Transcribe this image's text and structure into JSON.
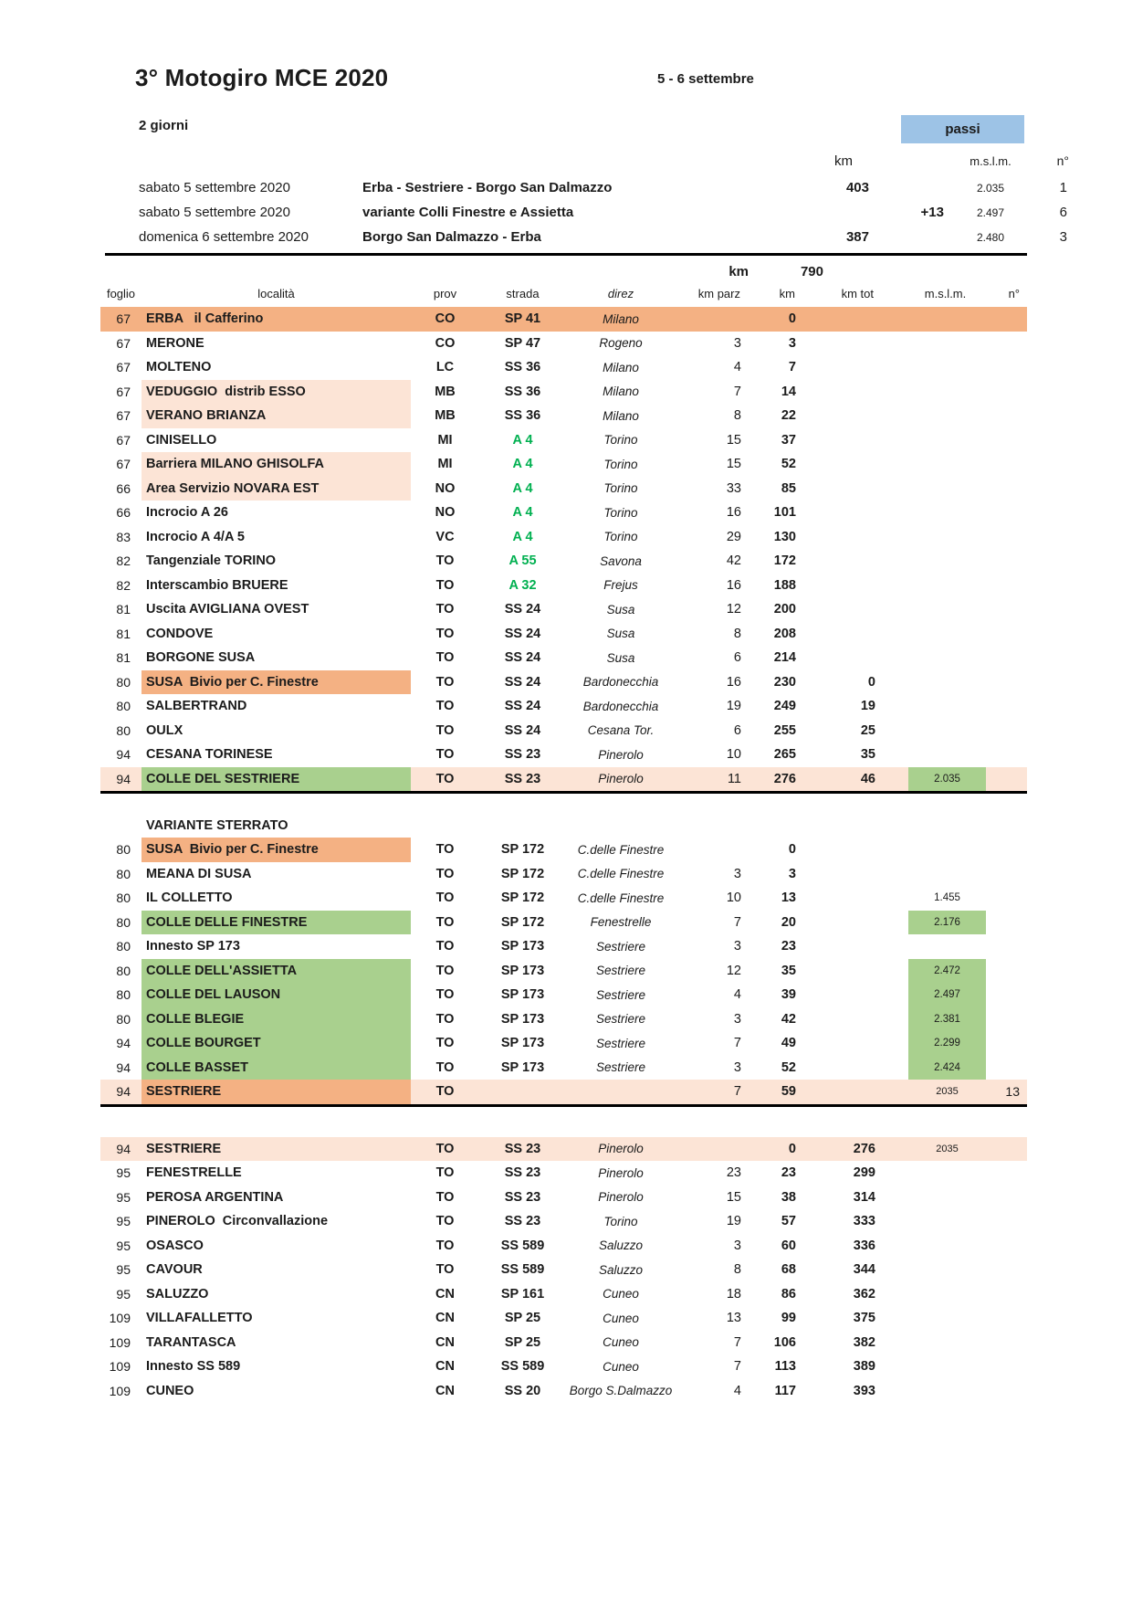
{
  "colors": {
    "orange": "#F4B183",
    "peach": "#FCE4D6",
    "green": "#A9D08E",
    "blue": "#9DC3E6",
    "road_green": "#00B050"
  },
  "header": {
    "title": "3° Motogiro MCE 2020",
    "dates": "5 - 6 settembre",
    "duration": "2 giorni",
    "passi_label": "passi"
  },
  "summary": {
    "columns": {
      "km": "km",
      "mslm": "m.s.l.m.",
      "n": "n°"
    },
    "rows": [
      {
        "date": "sabato 5 settembre 2020",
        "route": "Erba - Sestriere - Borgo San Dalmazzo",
        "km": "403",
        "extra": "",
        "mslm": "2.035",
        "n": "1"
      },
      {
        "date": "sabato 5 settembre 2020",
        "route": "variante Colli Finestre e Assietta",
        "km": "",
        "extra": "+13",
        "mslm": "2.497",
        "n": "6"
      },
      {
        "date": "domenica 6 settembre 2020",
        "route": "Borgo San Dalmazzo - Erba",
        "km": "387",
        "extra": "",
        "mslm": "2.480",
        "n": "3"
      }
    ],
    "total": {
      "label": "km",
      "value": "790"
    }
  },
  "table": {
    "columns": [
      "foglio",
      "località",
      "prov",
      "strada",
      "direz",
      "km parz",
      "km",
      "km tot",
      "m.s.l.m.",
      "n°"
    ],
    "sections": [
      {
        "rows": [
          {
            "f": "67",
            "loc": "ERBA   il Cafferino",
            "pr": "CO",
            "st": "SP 41",
            "dz": "Milano",
            "kp": "",
            "km": "0",
            "kt": "",
            "ms": "",
            "n": "",
            "bg": "orange"
          },
          {
            "f": "67",
            "loc": "MERONE",
            "pr": "CO",
            "st": "SP 47",
            "dz": "Rogeno",
            "kp": "3",
            "km": "3",
            "kt": "",
            "ms": "",
            "n": ""
          },
          {
            "f": "67",
            "loc": "MOLTENO",
            "pr": "LC",
            "st": "SS 36",
            "dz": "Milano",
            "kp": "4",
            "km": "7",
            "kt": "",
            "ms": "",
            "n": ""
          },
          {
            "f": "67",
            "loc": "VEDUGGIO  distrib ESSO",
            "pr": "MB",
            "st": "SS 36",
            "dz": "Milano",
            "kp": "7",
            "km": "14",
            "kt": "",
            "ms": "",
            "n": "",
            "lbg": "peach"
          },
          {
            "f": "67",
            "loc": "VERANO BRIANZA",
            "pr": "MB",
            "st": "SS 36",
            "dz": "Milano",
            "kp": "8",
            "km": "22",
            "kt": "",
            "ms": "",
            "n": "",
            "lbg": "peach"
          },
          {
            "f": "67",
            "loc": "CINISELLO",
            "pr": "MI",
            "st": "A 4",
            "stg": true,
            "dz": "Torino",
            "kp": "15",
            "km": "37",
            "kt": "",
            "ms": "",
            "n": ""
          },
          {
            "f": "67",
            "loc": "Barriera MILANO GHISOLFA",
            "pr": "MI",
            "st": "A 4",
            "stg": true,
            "dz": "Torino",
            "kp": "15",
            "km": "52",
            "kt": "",
            "ms": "",
            "n": "",
            "lbg": "peach"
          },
          {
            "f": "66",
            "loc": "Area Servizio NOVARA EST",
            "pr": "NO",
            "st": "A 4",
            "stg": true,
            "dz": "Torino",
            "kp": "33",
            "km": "85",
            "kt": "",
            "ms": "",
            "n": "",
            "lbg": "peach"
          },
          {
            "f": "66",
            "loc": "Incrocio A 26",
            "pr": "NO",
            "st": "A 4",
            "stg": true,
            "dz": "Torino",
            "kp": "16",
            "km": "101",
            "kt": "",
            "ms": "",
            "n": ""
          },
          {
            "f": "83",
            "loc": "Incrocio A 4/A 5",
            "pr": "VC",
            "st": "A 4",
            "stg": true,
            "dz": "Torino",
            "kp": "29",
            "km": "130",
            "kt": "",
            "ms": "",
            "n": ""
          },
          {
            "f": "82",
            "loc": "Tangenziale TORINO",
            "pr": "TO",
            "st": "A 55",
            "stg": true,
            "dz": "Savona",
            "kp": "42",
            "km": "172",
            "kt": "",
            "ms": "",
            "n": ""
          },
          {
            "f": "82",
            "loc": "Interscambio BRUERE",
            "pr": "TO",
            "st": "A 32",
            "stg": true,
            "dz": "Frejus",
            "kp": "16",
            "km": "188",
            "kt": "",
            "ms": "",
            "n": ""
          },
          {
            "f": "81",
            "loc": "Uscita AVIGLIANA OVEST",
            "pr": "TO",
            "st": "SS 24",
            "dz": "Susa",
            "kp": "12",
            "km": "200",
            "kt": "",
            "ms": "",
            "n": ""
          },
          {
            "f": "81",
            "loc": "CONDOVE",
            "pr": "TO",
            "st": "SS 24",
            "dz": "Susa",
            "kp": "8",
            "km": "208",
            "kt": "",
            "ms": "",
            "n": ""
          },
          {
            "f": "81",
            "loc": "BORGONE SUSA",
            "pr": "TO",
            "st": "SS 24",
            "dz": "Susa",
            "kp": "6",
            "km": "214",
            "kt": "",
            "ms": "",
            "n": ""
          },
          {
            "f": "80",
            "loc": "SUSA  Bivio per C. Finestre",
            "pr": "TO",
            "st": "SS 24",
            "dz": "Bardonecchia",
            "kp": "16",
            "km": "230",
            "kt": "0",
            "ms": "",
            "n": "",
            "lbg": "orange"
          },
          {
            "f": "80",
            "loc": "SALBERTRAND",
            "pr": "TO",
            "st": "SS 24",
            "dz": "Bardonecchia",
            "kp": "19",
            "km": "249",
            "kt": "19",
            "ms": "",
            "n": ""
          },
          {
            "f": "80",
            "loc": "OULX",
            "pr": "TO",
            "st": "SS 24",
            "dz": "Cesana Tor.",
            "kp": "6",
            "km": "255",
            "kt": "25",
            "ms": "",
            "n": ""
          },
          {
            "f": "94",
            "loc": "CESANA TORINESE",
            "pr": "TO",
            "st": "SS 23",
            "dz": "Pinerolo",
            "kp": "10",
            "km": "265",
            "kt": "35",
            "ms": "",
            "n": ""
          },
          {
            "f": "94",
            "loc": "COLLE DEL SESTRIERE",
            "pr": "TO",
            "st": "SS 23",
            "dz": "Pinerolo",
            "kp": "11",
            "km": "276",
            "kt": "46",
            "ms": "2.035",
            "msb": true,
            "n": "",
            "bg": "peach",
            "lbg": "green",
            "tb": true
          }
        ]
      },
      {
        "title": "VARIANTE STERRATO",
        "rows": [
          {
            "f": "80",
            "loc": "SUSA  Bivio per C. Finestre",
            "pr": "TO",
            "st": "SP 172",
            "dz": "C.delle Finestre",
            "kp": "",
            "km": "0",
            "kt": "",
            "ms": "",
            "n": "",
            "lbg": "orange"
          },
          {
            "f": "80",
            "loc": "MEANA DI SUSA",
            "pr": "TO",
            "st": "SP 172",
            "dz": "C.delle Finestre",
            "kp": "3",
            "km": "3",
            "kt": "",
            "ms": "",
            "n": ""
          },
          {
            "f": "80",
            "loc": "IL COLLETTO",
            "pr": "TO",
            "st": "SP 172",
            "dz": "C.delle Finestre",
            "kp": "10",
            "km": "13",
            "kt": "",
            "ms": "1.455",
            "n": ""
          },
          {
            "f": "80",
            "loc": "COLLE DELLE FINESTRE",
            "pr": "TO",
            "st": "SP 172",
            "dz": "Fenestrelle",
            "kp": "7",
            "km": "20",
            "kt": "",
            "ms": "2.176",
            "msb": true,
            "n": "",
            "lbg": "green"
          },
          {
            "f": "80",
            "loc": "Innesto SP 173",
            "pr": "TO",
            "st": "SP 173",
            "dz": "Sestriere",
            "kp": "3",
            "km": "23",
            "kt": "",
            "ms": "",
            "n": ""
          },
          {
            "f": "80",
            "loc": "COLLE DELL'ASSIETTA",
            "pr": "TO",
            "st": "SP 173",
            "dz": "Sestriere",
            "kp": "12",
            "km": "35",
            "kt": "",
            "ms": "2.472",
            "msb": true,
            "n": "",
            "lbg": "green"
          },
          {
            "f": "80",
            "loc": "COLLE DEL LAUSON",
            "pr": "TO",
            "st": "SP 173",
            "dz": "Sestriere",
            "kp": "4",
            "km": "39",
            "kt": "",
            "ms": "2.497",
            "msb": true,
            "n": "",
            "lbg": "green"
          },
          {
            "f": "80",
            "loc": "COLLE BLEGIE",
            "pr": "TO",
            "st": "SP 173",
            "dz": "Sestriere",
            "kp": "3",
            "km": "42",
            "kt": "",
            "ms": "2.381",
            "msb": true,
            "n": "",
            "lbg": "green"
          },
          {
            "f": "94",
            "loc": "COLLE BOURGET",
            "pr": "TO",
            "st": "SP 173",
            "dz": "Sestriere",
            "kp": "7",
            "km": "49",
            "kt": "",
            "ms": "2.299",
            "msb": true,
            "n": "",
            "lbg": "green"
          },
          {
            "f": "94",
            "loc": "COLLE BASSET",
            "pr": "TO",
            "st": "SP 173",
            "dz": "Sestriere",
            "kp": "3",
            "km": "52",
            "kt": "",
            "ms": "2.424",
            "msb": true,
            "n": "",
            "lbg": "green"
          },
          {
            "f": "94",
            "loc": "SESTRIERE",
            "pr": "TO",
            "st": "",
            "dz": "",
            "kp": "7",
            "km": "59",
            "kt": "",
            "ms": "2035",
            "mss": true,
            "n": "13",
            "bg": "peach",
            "lbg": "orange",
            "tb": true
          }
        ]
      },
      {
        "rows": [
          {
            "f": "94",
            "loc": "SESTRIERE",
            "pr": "TO",
            "st": "SS 23",
            "dz": "Pinerolo",
            "kp": "",
            "km": "0",
            "kt": "276",
            "ms": "2035",
            "mss": true,
            "n": "",
            "bg": "peach"
          },
          {
            "f": "95",
            "loc": "FENESTRELLE",
            "pr": "TO",
            "st": "SS 23",
            "dz": "Pinerolo",
            "kp": "23",
            "km": "23",
            "kt": "299",
            "ms": "",
            "n": ""
          },
          {
            "f": "95",
            "loc": "PEROSA ARGENTINA",
            "pr": "TO",
            "st": "SS 23",
            "dz": "Pinerolo",
            "kp": "15",
            "km": "38",
            "kt": "314",
            "ms": "",
            "n": ""
          },
          {
            "f": "95",
            "loc": "PINEROLO  Circonvallazione",
            "pr": "TO",
            "st": "SS 23",
            "dz": "Torino",
            "kp": "19",
            "km": "57",
            "kt": "333",
            "ms": "",
            "n": ""
          },
          {
            "f": "95",
            "loc": "OSASCO",
            "pr": "TO",
            "st": "SS 589",
            "dz": "Saluzzo",
            "kp": "3",
            "km": "60",
            "kt": "336",
            "ms": "",
            "n": ""
          },
          {
            "f": "95",
            "loc": "CAVOUR",
            "pr": "TO",
            "st": "SS 589",
            "dz": "Saluzzo",
            "kp": "8",
            "km": "68",
            "kt": "344",
            "ms": "",
            "n": ""
          },
          {
            "f": "95",
            "loc": "SALUZZO",
            "pr": "CN",
            "st": "SP 161",
            "dz": "Cuneo",
            "kp": "18",
            "km": "86",
            "kt": "362",
            "ms": "",
            "n": ""
          },
          {
            "f": "109",
            "loc": "VILLAFALLETTO",
            "pr": "CN",
            "st": "SP 25",
            "dz": "Cuneo",
            "kp": "13",
            "km": "99",
            "kt": "375",
            "ms": "",
            "n": ""
          },
          {
            "f": "109",
            "loc": "TARANTASCA",
            "pr": "CN",
            "st": "SP 25",
            "dz": "Cuneo",
            "kp": "7",
            "km": "106",
            "kt": "382",
            "ms": "",
            "n": ""
          },
          {
            "f": "109",
            "loc": "Innesto SS 589",
            "pr": "CN",
            "st": "SS 589",
            "dz": "Cuneo",
            "kp": "7",
            "km": "113",
            "kt": "389",
            "ms": "",
            "n": ""
          },
          {
            "f": "109",
            "loc": "CUNEO",
            "pr": "CN",
            "st": "SS 20",
            "dz": "Borgo S.Dalmazzo",
            "kp": "4",
            "km": "117",
            "kt": "393",
            "ms": "",
            "n": ""
          }
        ]
      }
    ]
  }
}
